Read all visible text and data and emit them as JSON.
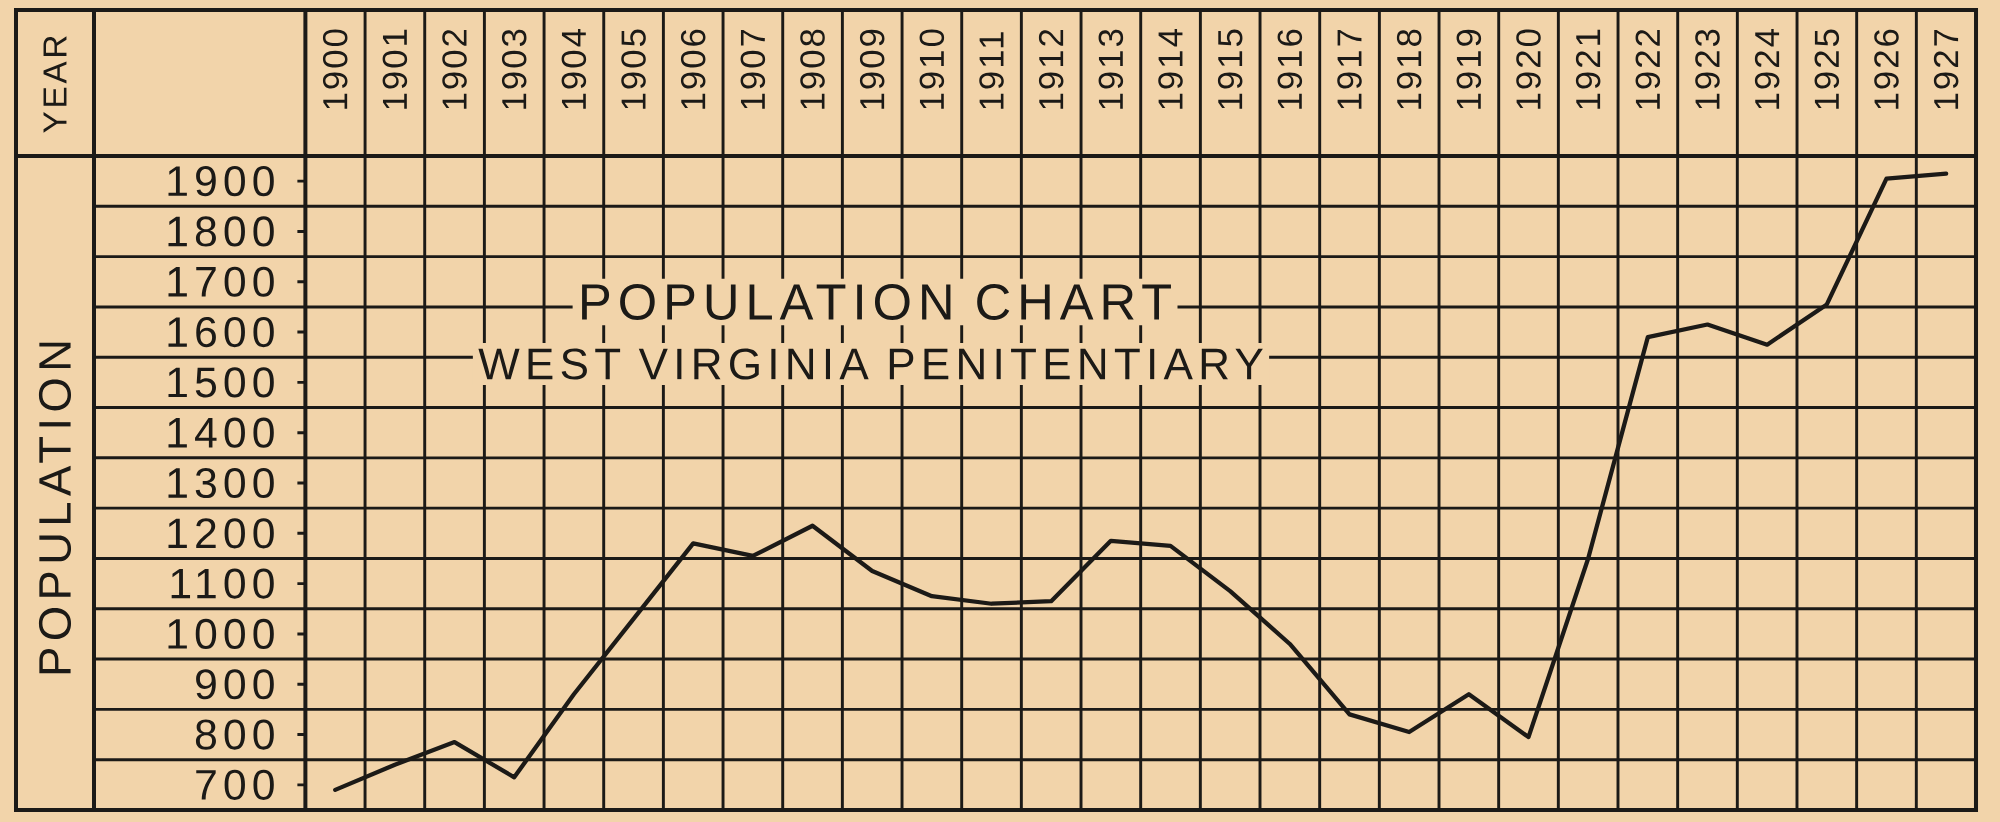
{
  "chart_data": {
    "type": "line",
    "title": "POPULATION CHART",
    "subtitle": "WEST VIRGINIA PENITENTIARY",
    "ylabel": "POPULATION",
    "annotations": [
      "YEAR"
    ],
    "categories": [
      "1900",
      "1901",
      "1902",
      "1903",
      "1904",
      "1905",
      "1906",
      "1907",
      "1908",
      "1909",
      "1910",
      "1911",
      "1912",
      "1913",
      "1914",
      "1915",
      "1916",
      "1917",
      "1918",
      "1919",
      "1920",
      "1921",
      "1922",
      "1923",
      "1924",
      "1925",
      "1926",
      "1927"
    ],
    "values": [
      690,
      740,
      785,
      715,
      880,
      1030,
      1180,
      1155,
      1215,
      1125,
      1075,
      1060,
      1065,
      1185,
      1175,
      1085,
      980,
      840,
      805,
      880,
      795,
      1150,
      1590,
      1615,
      1575,
      1655,
      1905,
      1915
    ],
    "color": "#1c1a17",
    "ylim": [
      650,
      1950
    ],
    "yticks": [
      700,
      800,
      900,
      1000,
      1100,
      1200,
      1300,
      1400,
      1500,
      1600,
      1700,
      1800,
      1900
    ],
    "grid": true
  }
}
